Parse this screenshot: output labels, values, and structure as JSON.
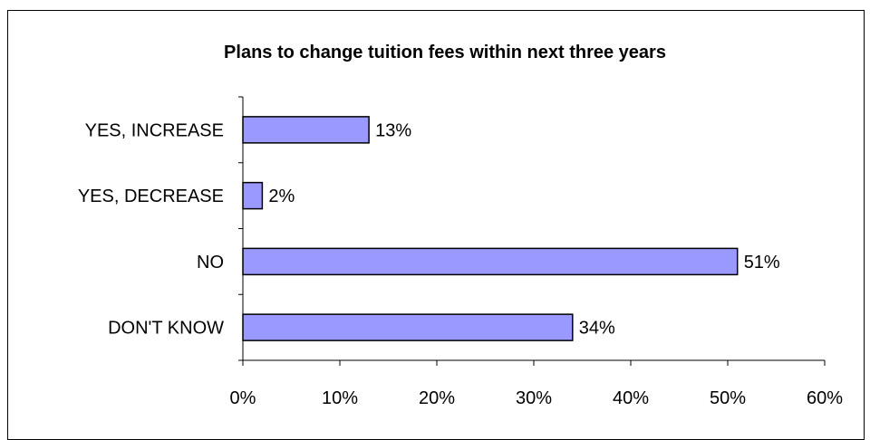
{
  "chart_data": {
    "type": "bar",
    "orientation": "horizontal",
    "title": "Plans to change tuition fees within next three years",
    "categories": [
      "YES, INCREASE",
      "YES, DECREASE",
      "NO",
      "DON'T KNOW"
    ],
    "values": [
      13,
      2,
      51,
      34
    ],
    "value_labels": [
      "13%",
      "2%",
      "51%",
      "34%"
    ],
    "xlim": [
      0,
      60
    ],
    "x_ticks": [
      0,
      10,
      20,
      30,
      40,
      50,
      60
    ],
    "x_tick_labels": [
      "0%",
      "10%",
      "20%",
      "30%",
      "40%",
      "50%",
      "60%"
    ],
    "xlabel": "",
    "ylabel": "",
    "grid": false,
    "legend": "none",
    "bar_color": "#9999ff",
    "bar_stroke": "#000000"
  }
}
